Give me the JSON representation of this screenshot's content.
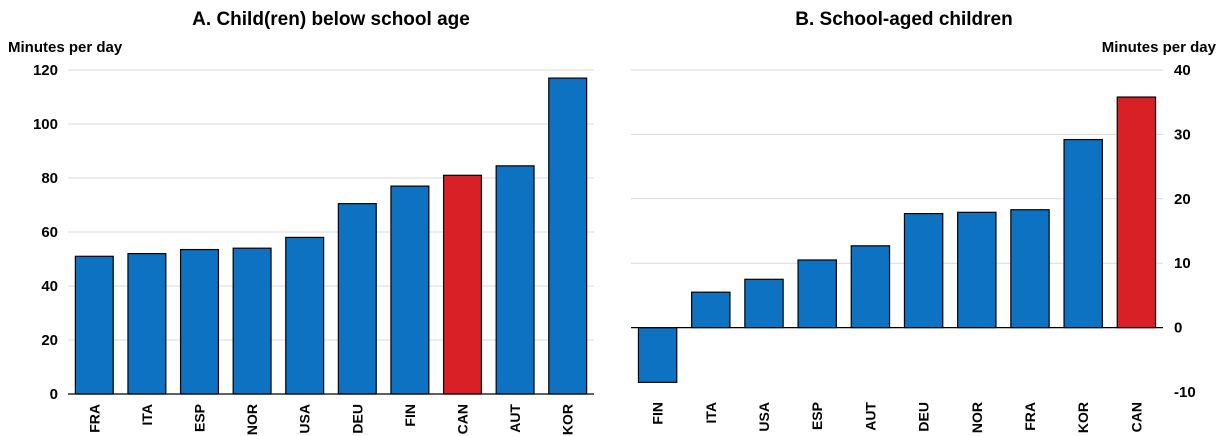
{
  "chart_data": [
    {
      "type": "bar",
      "title": "A. Child(ren) below school age",
      "ylabel": "Minutes per day",
      "ylim": [
        0,
        120
      ],
      "yticks": [
        0,
        20,
        40,
        60,
        80,
        100,
        120
      ],
      "axis_side": "left",
      "grid": true,
      "categories": [
        "FRA",
        "ITA",
        "ESP",
        "NOR",
        "USA",
        "DEU",
        "FIN",
        "CAN",
        "AUT",
        "KOR"
      ],
      "values": [
        51,
        52,
        53.5,
        54,
        58,
        70.5,
        77,
        81,
        84.5,
        117
      ],
      "highlight": "CAN",
      "colors": {
        "bar": "#0e72c2",
        "highlight": "#d92027",
        "outline": "#000000"
      }
    },
    {
      "type": "bar",
      "title": "B. School-aged children",
      "ylabel": "Minutes per day",
      "ylim": [
        -10,
        40
      ],
      "yticks": [
        -10,
        0,
        10,
        20,
        30,
        40
      ],
      "axis_side": "right",
      "grid": true,
      "categories": [
        "FIN",
        "ITA",
        "USA",
        "ESP",
        "AUT",
        "DEU",
        "NOR",
        "FRA",
        "KOR",
        "CAN"
      ],
      "values": [
        -8.5,
        5.5,
        7.5,
        10.5,
        12.7,
        17.7,
        17.9,
        18.3,
        29.2,
        35.8
      ],
      "highlight": "CAN",
      "colors": {
        "bar": "#0e72c2",
        "highlight": "#d92027",
        "outline": "#000000"
      }
    }
  ]
}
